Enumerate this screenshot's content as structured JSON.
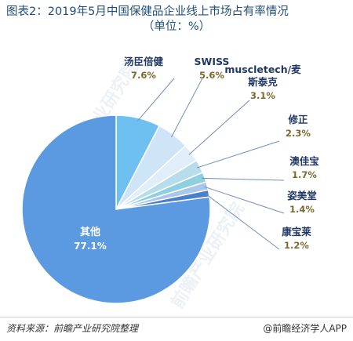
{
  "header": {
    "title_line1": "图表2：2019年5月中国保健品企业线上市场占有率情况",
    "title_line2": "（单位：%）"
  },
  "footer": {
    "source": "资料来源：前瞻产业研究院整理",
    "brand": "@前瞻经济学人APP"
  },
  "watermark": {
    "text": "前瞻产业研究院"
  },
  "colors": {
    "main_slice": "#5b9ae0",
    "label_dark": "#1f3864",
    "label_value": "#7a6a2f",
    "leader": "#6f8fb8"
  },
  "chart_data": {
    "type": "pie",
    "title": "图表2：2019年5月中国保健品企业线上市场占有率情况",
    "unit": "%",
    "slices": [
      {
        "name": "汤臣倍健",
        "value": 7.6,
        "label": "7.6%",
        "color": "#6ec0f0"
      },
      {
        "name": "SWISS",
        "value": 5.6,
        "label": "5.6%",
        "color": "#cde5f7"
      },
      {
        "name": "muscletech/麦斯泰克",
        "value": 3.1,
        "label": "3.1%",
        "color": "#dfeef8"
      },
      {
        "name": "修正",
        "value": 2.3,
        "label": "2.3%",
        "color": "#b6dde9"
      },
      {
        "name": "澳佳宝",
        "value": 1.7,
        "label": "1.7%",
        "color": "#8fd0e0"
      },
      {
        "name": "姿美堂",
        "value": 1.4,
        "label": "1.4%",
        "color": "#a9c7e8"
      },
      {
        "name": "康宝莱",
        "value": 1.2,
        "label": "1.2%",
        "color": "#4a7fd0"
      },
      {
        "name": "其他",
        "value": 77.1,
        "label": "77.1%",
        "color": "#5b9ae0"
      }
    ]
  }
}
